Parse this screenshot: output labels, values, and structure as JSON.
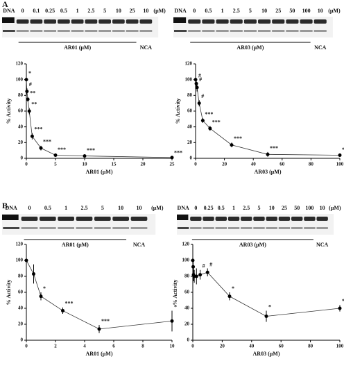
{
  "panels": [
    "A",
    "B"
  ],
  "gels": [
    {
      "lanes": [
        "DNA",
        "0",
        "0.1",
        "0.25",
        "0.5",
        "1",
        "2.5",
        "5",
        "10",
        "25",
        "10"
      ],
      "unit": "(μM)",
      "drug": "AR01 (μM)",
      "control": "NCA"
    },
    {
      "lanes": [
        "DNA",
        "0",
        "0.5",
        "1",
        "2.5",
        "5",
        "10",
        "25",
        "50",
        "100",
        "10"
      ],
      "unit": "(μM)",
      "drug": "AR03 (μM)",
      "control": "NCA"
    },
    {
      "lanes": [
        "DNA",
        "0",
        "0.5",
        "1",
        "2.5",
        "5",
        "10",
        "10"
      ],
      "unit": "(μM)",
      "drug": "AR01 (μM)",
      "control": "NCA"
    },
    {
      "lanes": [
        "DNA",
        "0",
        "0.25",
        "0.5",
        "1",
        "2.5",
        "5",
        "10",
        "25",
        "50",
        "100",
        "10"
      ],
      "unit": "(μM)",
      "drug": "AR03 (μM)",
      "control": "NCA"
    }
  ],
  "chart_data": [
    {
      "type": "scatter",
      "x_label": "AR01 (μM)",
      "y_label": "% Activity",
      "x": [
        0,
        0.1,
        0.25,
        0.5,
        1,
        2.5,
        5,
        10,
        25
      ],
      "values": [
        100,
        85,
        75,
        60,
        28,
        13,
        4,
        3,
        1
      ],
      "errors": [
        3,
        4,
        3,
        4,
        4,
        3,
        2,
        2,
        1
      ],
      "labels": [
        "*",
        "#",
        "**",
        "**",
        "***",
        "***",
        "***",
        "***",
        "***"
      ],
      "xlim": [
        0,
        25
      ],
      "xticks": [
        0,
        5,
        10,
        15,
        20,
        25
      ],
      "ylim": [
        0,
        120
      ],
      "yticks": [
        0,
        20,
        40,
        60,
        80,
        100,
        120
      ],
      "color": "#000000"
    },
    {
      "type": "scatter",
      "x_label": "AR03 (μM)",
      "y_label": "% Activity",
      "x": [
        0,
        0.5,
        1,
        2.5,
        5,
        10,
        25,
        50,
        100
      ],
      "values": [
        100,
        95,
        90,
        70,
        48,
        38,
        17,
        5,
        4
      ],
      "errors": [
        7,
        5,
        5,
        4,
        3,
        3,
        3,
        3,
        2
      ],
      "labels": [
        null,
        "#",
        "#",
        "#",
        "***",
        "***",
        "***",
        "***",
        "***"
      ],
      "xlim": [
        0,
        100
      ],
      "xticks": [
        0,
        20,
        40,
        60,
        80,
        100
      ],
      "ylim": [
        0,
        120
      ],
      "yticks": [
        0,
        20,
        40,
        60,
        80,
        100,
        120
      ],
      "color": "#000000"
    },
    {
      "type": "scatter",
      "x_label": "AR01 (μM)",
      "y_label": "% Activity",
      "x": [
        0,
        0.5,
        1,
        2.5,
        5,
        10
      ],
      "values": [
        100,
        83,
        55,
        37,
        14,
        24
      ],
      "errors": [
        2,
        12,
        5,
        4,
        5,
        13
      ],
      "labels": [
        null,
        null,
        "*",
        "***",
        "***",
        "*"
      ],
      "xlim": [
        0,
        10
      ],
      "xticks": [
        0,
        2,
        4,
        6,
        8,
        10
      ],
      "ylim": [
        0,
        120
      ],
      "yticks": [
        0,
        20,
        40,
        60,
        80,
        100,
        120
      ],
      "color": "#000000"
    },
    {
      "type": "scatter",
      "x_label": "AR03 (μM)",
      "y_label": "% Activity",
      "x": [
        0,
        0.25,
        0.5,
        1,
        2.5,
        5,
        10,
        25,
        50,
        100
      ],
      "values": [
        100,
        92,
        82,
        80,
        80,
        82,
        85,
        55,
        30,
        40
      ],
      "errors": [
        6,
        10,
        8,
        8,
        10,
        6,
        5,
        5,
        7,
        4
      ],
      "labels": [
        null,
        null,
        null,
        null,
        null,
        "#",
        "#",
        "*",
        "*",
        "*"
      ],
      "xlim": [
        0,
        100
      ],
      "xticks": [
        0,
        20,
        40,
        60,
        80,
        100
      ],
      "ylim": [
        0,
        120
      ],
      "yticks": [
        0,
        20,
        40,
        60,
        80,
        100,
        120
      ],
      "color": "#000000"
    }
  ]
}
